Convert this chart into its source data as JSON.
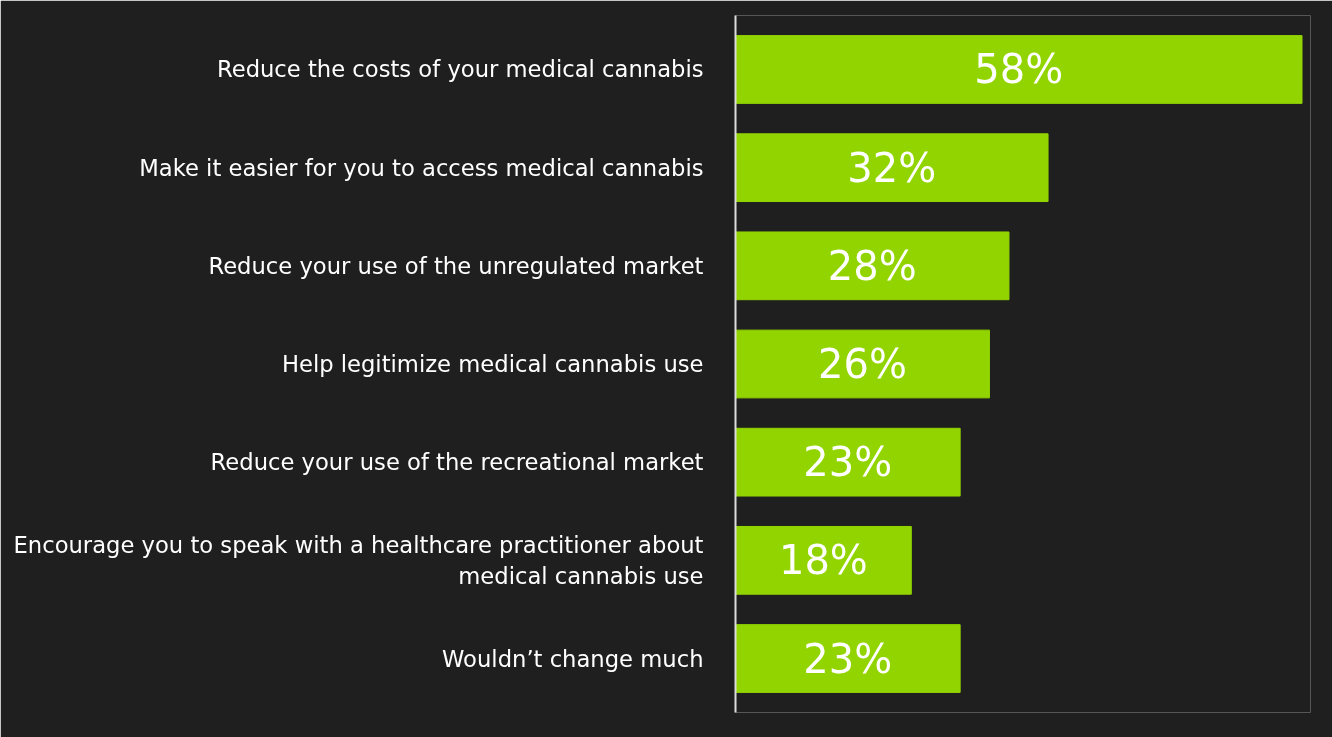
{
  "chart_data": {
    "type": "bar",
    "orientation": "horizontal",
    "categories": [
      "Reduce the costs of your medical cannabis",
      "Make it easier for you to access medical cannabis",
      "Reduce your use of the unregulated market",
      "Help legitimize medical cannabis use",
      "Reduce your use of the recreational market",
      "Encourage you to speak with a healthcare practitioner about medical cannabis use",
      "Wouldn’t change much"
    ],
    "values": [
      58,
      32,
      28,
      26,
      23,
      18,
      23
    ],
    "value_labels": [
      "58%",
      "32%",
      "28%",
      "26%",
      "23%",
      "18%",
      "23%"
    ],
    "color": "#92d400"
  }
}
